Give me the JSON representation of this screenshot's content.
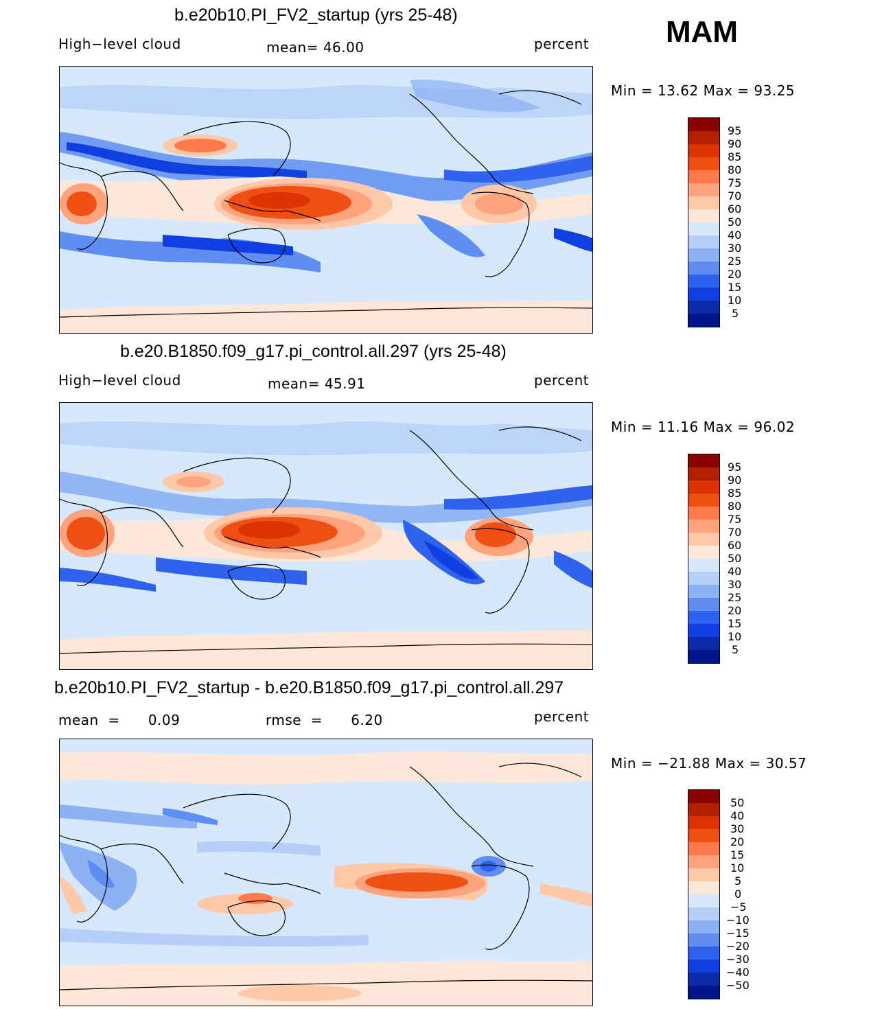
{
  "season": "MAM",
  "panels": [
    {
      "title": "b.e20b10.PI_FV2_startup (yrs 25-48)",
      "left_label": "High−level  cloud",
      "center_label": "mean=   46.00",
      "right_label": "percent",
      "minmax": "Min  =    13.62  Max  =    93.25",
      "map_name": "model-a-map",
      "colorbar": {
        "labels": [
          "95",
          "90",
          "85",
          "80",
          "75",
          "70",
          "60",
          "50",
          "40",
          "30",
          "25",
          "20",
          "15",
          "10",
          "5"
        ]
      }
    },
    {
      "title": "b.e20.B1850.f09_g17.pi_control.all.297 (yrs 25-48)",
      "left_label": "High−level  cloud",
      "center_label": "mean=   45.91",
      "right_label": "percent",
      "minmax": "Min  =    11.16  Max  =    96.02",
      "map_name": "model-b-map",
      "colorbar": {
        "labels": [
          "95",
          "90",
          "85",
          "80",
          "75",
          "70",
          "60",
          "50",
          "40",
          "30",
          "25",
          "20",
          "15",
          "10",
          "5"
        ]
      }
    },
    {
      "title": "b.e20b10.PI_FV2_startup - b.e20.B1850.f09_g17.pi_control.all.297",
      "left_label": "mean  =      0.09",
      "center_label": "rmse  =      6.20",
      "right_label": "percent",
      "minmax": "Min  =  −21.88  Max  =    30.57",
      "map_name": "difference-map",
      "colorbar": {
        "labels": [
          "50",
          "40",
          "30",
          "20",
          "15",
          "10",
          "5",
          "0",
          "−5",
          "−10",
          "−15",
          "−20",
          "−30",
          "−40",
          "−50"
        ]
      }
    }
  ],
  "colors": {
    "scale": [
      "#8b0000",
      "#b22000",
      "#dd3300",
      "#f04f14",
      "#ff7a4a",
      "#ffa37d",
      "#ffc8a8",
      "#fde7d8",
      "#d6e8fb",
      "#b5cff8",
      "#8cb1f5",
      "#5f8ef2",
      "#2f62ee",
      "#0f3fe0",
      "#0a2aaa",
      "#00148c"
    ],
    "land_outline": "#000000"
  }
}
